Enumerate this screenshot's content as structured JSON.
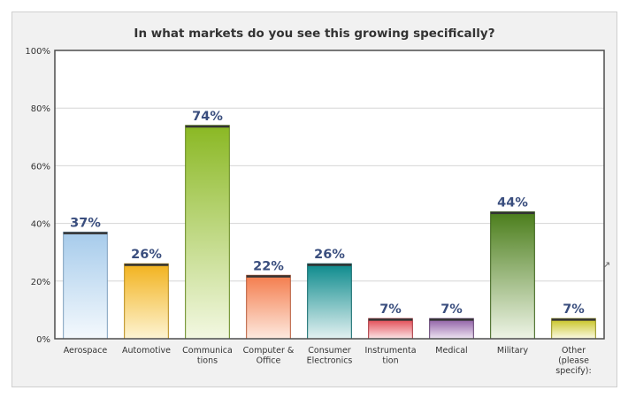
{
  "chart_data": {
    "type": "bar",
    "title": "In what markets do you see this growing specifically?",
    "categories": [
      [
        "Aerospace"
      ],
      [
        "Automotive"
      ],
      [
        "Communica",
        "tions"
      ],
      [
        "Computer &",
        "Office"
      ],
      [
        "Consumer",
        "Electronics"
      ],
      [
        "Instrumenta",
        "tion"
      ],
      [
        "Medical"
      ],
      [
        "Military"
      ],
      [
        "Other",
        "(please",
        "specify):"
      ]
    ],
    "values": [
      37,
      26,
      74,
      22,
      26,
      7,
      7,
      44,
      7
    ],
    "value_labels": [
      "37%",
      "26%",
      "74%",
      "22%",
      "26%",
      "7%",
      "7%",
      "44%",
      "7%"
    ],
    "ylim": [
      0,
      100
    ],
    "yticks": [
      "0%",
      "20%",
      "40%",
      "60%",
      "80%",
      "100%"
    ],
    "grid": true,
    "colors": [
      [
        "#a6cbeb",
        "#f4f9fd",
        "#7d9fbd"
      ],
      [
        "#f2b21d",
        "#fdf4d3",
        "#b88a14"
      ],
      [
        "#8ab823",
        "#f3f8e2",
        "#63871a"
      ],
      [
        "#f47c4c",
        "#fde9df",
        "#b85a38"
      ],
      [
        "#0b8a8c",
        "#e3f1f1",
        "#0a6668"
      ],
      [
        "#e2434d",
        "#fbe5e7",
        "#a83038"
      ],
      [
        "#8b5aa3",
        "#eee4f2",
        "#5f3d70"
      ],
      [
        "#4a7d1a",
        "#eef4e6",
        "#375e13"
      ],
      [
        "#c6c21c",
        "#fbfae3",
        "#918e15"
      ]
    ]
  }
}
